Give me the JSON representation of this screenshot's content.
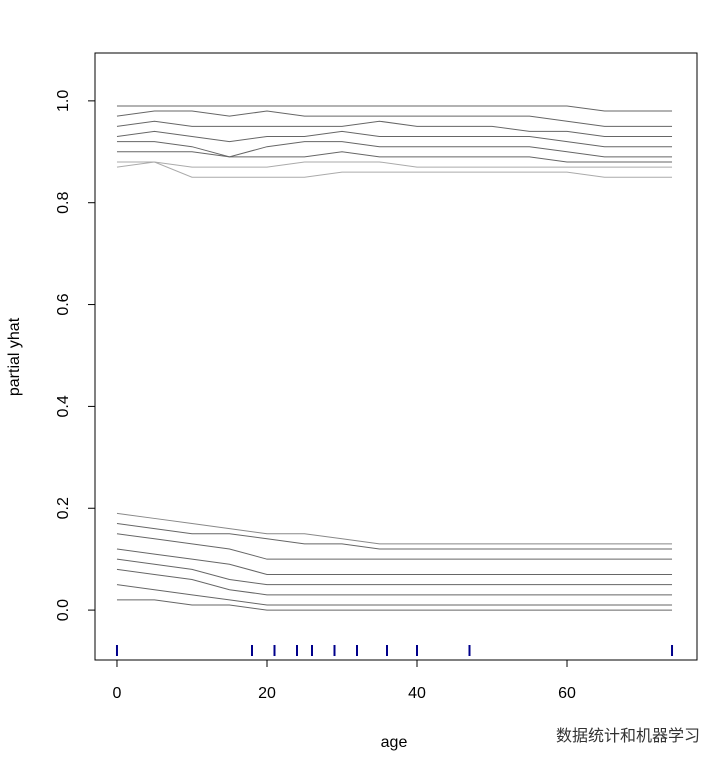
{
  "chart_data": {
    "type": "line",
    "x_label": "age",
    "y_label": "partial yhat",
    "x": [
      0,
      5,
      10,
      15,
      20,
      25,
      30,
      35,
      40,
      45,
      50,
      55,
      60,
      65,
      74
    ],
    "series": [
      {
        "color": "#666666",
        "values": [
          0.99,
          0.99,
          0.99,
          0.99,
          0.99,
          0.99,
          0.99,
          0.99,
          0.99,
          0.99,
          0.99,
          0.99,
          0.99,
          0.98,
          0.98
        ]
      },
      {
        "color": "#666666",
        "values": [
          0.97,
          0.98,
          0.98,
          0.97,
          0.98,
          0.97,
          0.97,
          0.97,
          0.97,
          0.97,
          0.97,
          0.97,
          0.96,
          0.95,
          0.95
        ]
      },
      {
        "color": "#666666",
        "values": [
          0.95,
          0.96,
          0.95,
          0.95,
          0.95,
          0.95,
          0.95,
          0.96,
          0.95,
          0.95,
          0.95,
          0.94,
          0.94,
          0.93,
          0.93
        ]
      },
      {
        "color": "#666666",
        "values": [
          0.93,
          0.94,
          0.93,
          0.92,
          0.93,
          0.93,
          0.94,
          0.93,
          0.93,
          0.93,
          0.93,
          0.93,
          0.92,
          0.91,
          0.91
        ]
      },
      {
        "color": "#666666",
        "values": [
          0.92,
          0.92,
          0.91,
          0.89,
          0.91,
          0.92,
          0.92,
          0.91,
          0.91,
          0.91,
          0.91,
          0.91,
          0.9,
          0.89,
          0.89
        ]
      },
      {
        "color": "#666666",
        "values": [
          0.9,
          0.9,
          0.9,
          0.89,
          0.89,
          0.89,
          0.9,
          0.89,
          0.89,
          0.89,
          0.89,
          0.89,
          0.88,
          0.88,
          0.88
        ]
      },
      {
        "color": "#aaaaaa",
        "values": [
          0.88,
          0.88,
          0.85,
          0.85,
          0.85,
          0.85,
          0.86,
          0.86,
          0.86,
          0.86,
          0.86,
          0.86,
          0.86,
          0.85,
          0.85
        ]
      },
      {
        "color": "#aaaaaa",
        "values": [
          0.87,
          0.88,
          0.87,
          0.87,
          0.87,
          0.88,
          0.88,
          0.88,
          0.87,
          0.87,
          0.87,
          0.87,
          0.87,
          0.87,
          0.87
        ]
      },
      {
        "color": "#888888",
        "values": [
          0.19,
          0.18,
          0.17,
          0.16,
          0.15,
          0.15,
          0.14,
          0.13,
          0.13,
          0.13,
          0.13,
          0.13,
          0.13,
          0.13,
          0.13
        ]
      },
      {
        "color": "#666666",
        "values": [
          0.17,
          0.16,
          0.15,
          0.15,
          0.14,
          0.13,
          0.13,
          0.12,
          0.12,
          0.12,
          0.12,
          0.12,
          0.12,
          0.12,
          0.12
        ]
      },
      {
        "color": "#666666",
        "values": [
          0.15,
          0.14,
          0.13,
          0.12,
          0.1,
          0.1,
          0.1,
          0.1,
          0.1,
          0.1,
          0.1,
          0.1,
          0.1,
          0.1,
          0.1
        ]
      },
      {
        "color": "#666666",
        "values": [
          0.12,
          0.11,
          0.1,
          0.09,
          0.07,
          0.07,
          0.07,
          0.07,
          0.07,
          0.07,
          0.07,
          0.07,
          0.07,
          0.07,
          0.07
        ]
      },
      {
        "color": "#666666",
        "values": [
          0.1,
          0.09,
          0.08,
          0.06,
          0.05,
          0.05,
          0.05,
          0.05,
          0.05,
          0.05,
          0.05,
          0.05,
          0.05,
          0.05,
          0.05
        ]
      },
      {
        "color": "#666666",
        "values": [
          0.08,
          0.07,
          0.06,
          0.04,
          0.03,
          0.03,
          0.03,
          0.03,
          0.03,
          0.03,
          0.03,
          0.03,
          0.03,
          0.03,
          0.03
        ]
      },
      {
        "color": "#666666",
        "values": [
          0.05,
          0.04,
          0.03,
          0.02,
          0.01,
          0.01,
          0.01,
          0.01,
          0.01,
          0.01,
          0.01,
          0.01,
          0.01,
          0.01,
          0.01
        ]
      },
      {
        "color": "#666666",
        "values": [
          0.02,
          0.02,
          0.01,
          0.01,
          0,
          0,
          0,
          0,
          0,
          0,
          0,
          0,
          0,
          0,
          0
        ]
      }
    ],
    "rug": [
      0,
      18,
      21,
      24,
      26,
      29,
      32,
      36,
      40,
      47,
      74
    ],
    "rug_color": "#00008b",
    "xlim": [
      -2.93,
      77.33
    ],
    "ylim": [
      -0.098,
      1.094
    ],
    "xticks": [
      0,
      20,
      40,
      60
    ],
    "yticks": [
      {
        "value": 0,
        "label": "0.0"
      },
      0.2,
      0.4,
      0.6,
      0.8,
      {
        "value": 1,
        "label": "1.0"
      }
    ],
    "watermark": "数据统计和机器学习"
  }
}
